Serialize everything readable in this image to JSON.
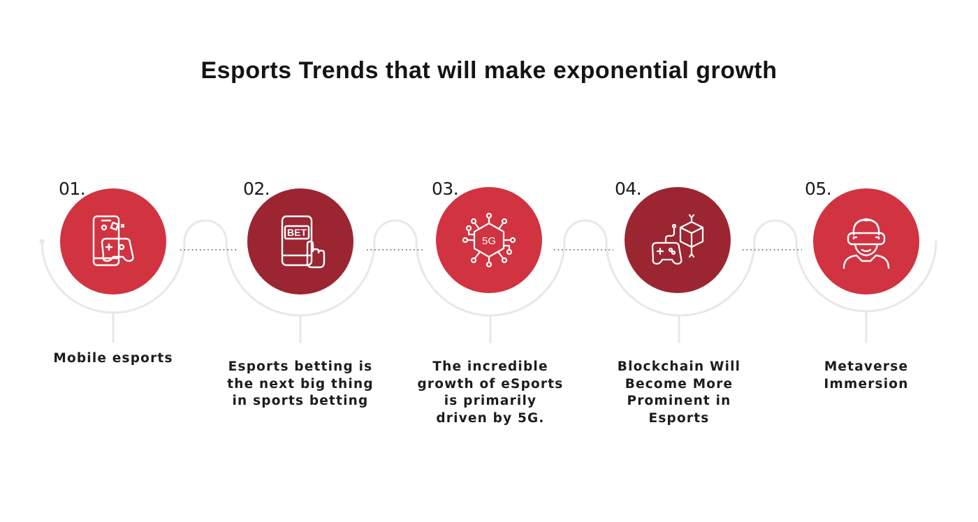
{
  "title": "Esports Trends that will make exponential growth",
  "colors": {
    "light": "#d13340",
    "dark": "#9b2631",
    "track": "#ece6e6",
    "dots": "#555555"
  },
  "steps": [
    {
      "number": "01.",
      "label": "Mobile esports",
      "icon": "mobile-gamepad-icon",
      "color": "light"
    },
    {
      "number": "02.",
      "label": "Esports betting is the next big thing in sports betting",
      "icon": "bet-phone-icon",
      "color": "dark"
    },
    {
      "number": "03.",
      "label": "The incredible growth of eSports is primarily driven by 5G.",
      "icon": "5g-network-icon",
      "color": "light"
    },
    {
      "number": "04.",
      "label": "Blockchain Will Become More Prominent in Esports",
      "icon": "blockchain-gamepad-icon",
      "color": "dark"
    },
    {
      "number": "05.",
      "label": "Metaverse Immersion",
      "icon": "vr-headset-person-icon",
      "color": "light"
    }
  ]
}
